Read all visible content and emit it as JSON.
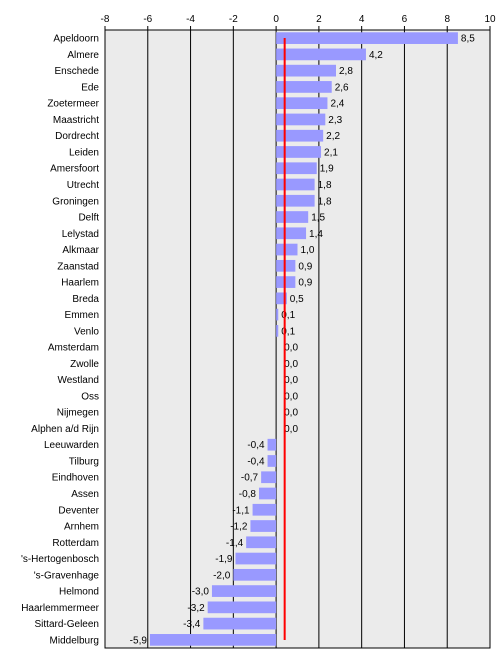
{
  "chart_data": {
    "type": "bar",
    "orientation": "horizontal",
    "categories": [
      "Apeldoorn",
      "Almere",
      "Enschede",
      "Ede",
      "Zoetermeer",
      "Maastricht",
      "Dordrecht",
      "Leiden",
      "Amersfoort",
      "Utrecht",
      "Groningen",
      "Delft",
      "Lelystad",
      "Alkmaar",
      "Zaanstad",
      "Haarlem",
      "Breda",
      "Emmen",
      "Venlo",
      "Amsterdam",
      "Zwolle",
      "Westland",
      "Oss",
      "Nijmegen",
      "Alphen a/d Rijn",
      "Leeuwarden",
      "Tilburg",
      "Eindhoven",
      "Assen",
      "Deventer",
      "Arnhem",
      "Rotterdam",
      "'s-Hertogenbosch",
      "'s-Gravenhage",
      "Helmond",
      "Haarlemmermeer",
      "Sittard-Geleen",
      "Middelburg"
    ],
    "values": [
      8.5,
      4.2,
      2.8,
      2.6,
      2.4,
      2.3,
      2.2,
      2.1,
      1.9,
      1.8,
      1.8,
      1.5,
      1.4,
      1.0,
      0.9,
      0.9,
      0.5,
      0.1,
      0.1,
      0.0,
      0.0,
      0.0,
      0.0,
      0.0,
      0.0,
      -0.4,
      -0.4,
      -0.7,
      -0.8,
      -1.1,
      -1.2,
      -1.4,
      -1.9,
      -2.0,
      -3.0,
      -3.2,
      -3.4,
      -5.9
    ],
    "value_labels": [
      "8,5",
      "4,2",
      "2,8",
      "2,6",
      "2,4",
      "2,3",
      "2,2",
      "2,1",
      "1,9",
      "1,8",
      "1,8",
      "1,5",
      "1,4",
      "1,0",
      "0,9",
      "0,9",
      "0,5",
      "0,1",
      "0,1",
      "0,0",
      "0,0",
      "0,0",
      "0,0",
      "0,0",
      "0,0",
      "-0,4",
      "-0,4",
      "-0,7",
      "-0,8",
      "-1,1",
      "-1,2",
      "-1,4",
      "-1,9",
      "-2,0",
      "-3,0",
      "-3,2",
      "-3,4",
      "-5,9"
    ],
    "xticks": [
      -8,
      -6,
      -4,
      -2,
      0,
      2,
      4,
      6,
      8,
      10
    ],
    "xlim": [
      -8,
      10
    ],
    "reference_line": 0.4,
    "grid": true,
    "title": "",
    "xlabel": "",
    "ylabel": "",
    "colors": {
      "bar": "#9999ff",
      "reference_line": "#ff0000",
      "plot_background": "#ebebeb",
      "grid": "#000000"
    }
  }
}
